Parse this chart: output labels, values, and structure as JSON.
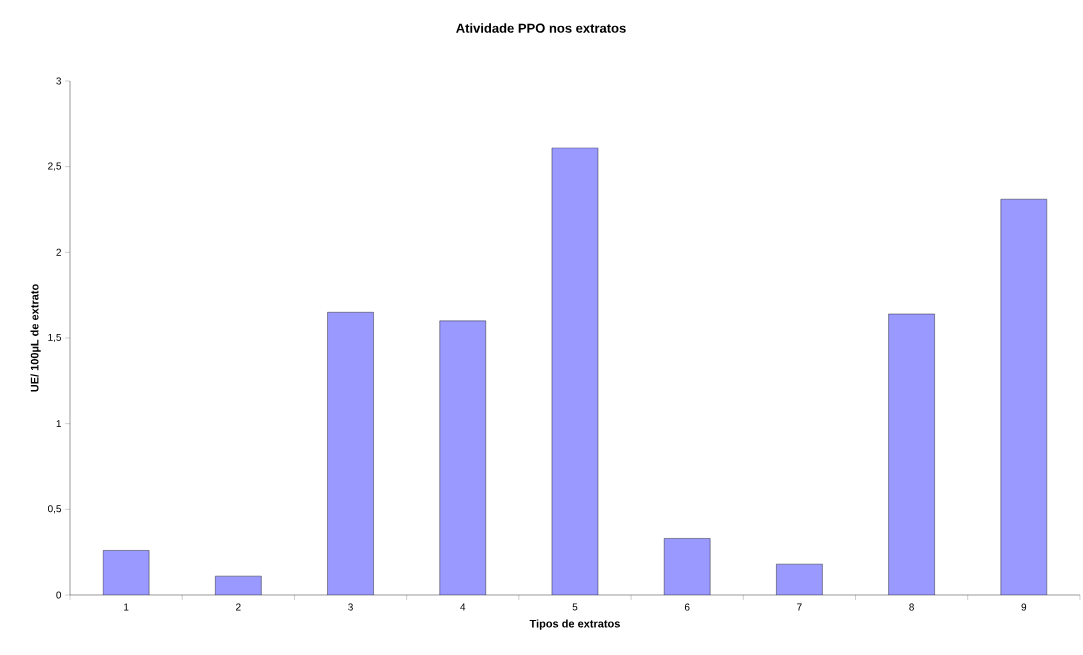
{
  "chart_data": {
    "type": "bar",
    "title": "Atividade PPO nos extratos",
    "xlabel": "Tipos de extratos",
    "ylabel": "UE/ 100µL de extrato",
    "categories": [
      "1",
      "2",
      "3",
      "4",
      "5",
      "6",
      "7",
      "8",
      "9"
    ],
    "values": [
      0.26,
      0.11,
      1.65,
      1.6,
      2.61,
      0.33,
      0.18,
      1.64,
      2.31
    ],
    "color": "#9999ff",
    "ylim": [
      0,
      3
    ],
    "yticks": [
      0,
      {
        "value": 0.5,
        "label": "0,5"
      },
      1,
      {
        "value": 1.5,
        "label": "1,5"
      },
      2,
      {
        "value": 2.5,
        "label": "2,5"
      },
      3
    ],
    "grid": false
  }
}
